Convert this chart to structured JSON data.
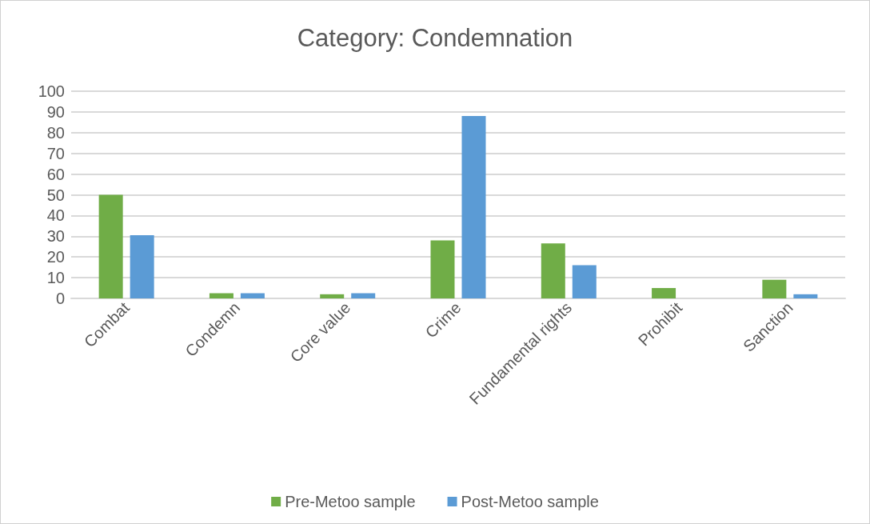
{
  "chart_data": {
    "type": "bar",
    "title": "Category: Condemnation",
    "categories": [
      "Combat",
      "Condemn",
      "Core value",
      "Crime",
      "Fundamental rights",
      "Prohibit",
      "Sanction"
    ],
    "series": [
      {
        "name": "Pre-Metoo sample",
        "color": "#70ad47",
        "values": [
          50,
          2.5,
          2,
          28,
          26.5,
          5,
          9
        ]
      },
      {
        "name": "Post-Metoo sample",
        "color": "#5b9bd5",
        "values": [
          30.5,
          2.5,
          2.5,
          88,
          16,
          0,
          2
        ]
      }
    ],
    "ylim": [
      0,
      100
    ],
    "yticks": [
      0,
      10,
      20,
      30,
      40,
      50,
      60,
      70,
      80,
      90,
      100
    ],
    "grid": "y",
    "legend": "bottom"
  }
}
